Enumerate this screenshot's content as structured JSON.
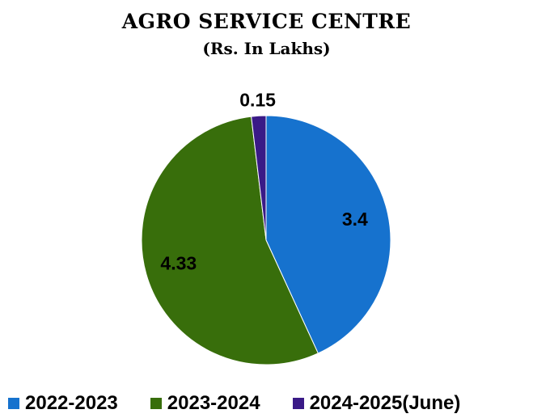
{
  "chart_data": {
    "type": "pie",
    "title": "AGRO SERVICE CENTRE",
    "subtitle": "(Rs.  In Lakhs)",
    "categories": [
      "2022-2023",
      "2023-2024",
      "2024-2025(June)"
    ],
    "values": [
      3.4,
      4.33,
      0.15
    ],
    "data_labels": [
      "3.4",
      "4.33",
      "0.15"
    ],
    "colors": [
      "#1672CE",
      "#386E0B",
      "#3A1A87"
    ],
    "legend_position": "bottom",
    "start_angle": "12 o'clock, clockwise"
  }
}
